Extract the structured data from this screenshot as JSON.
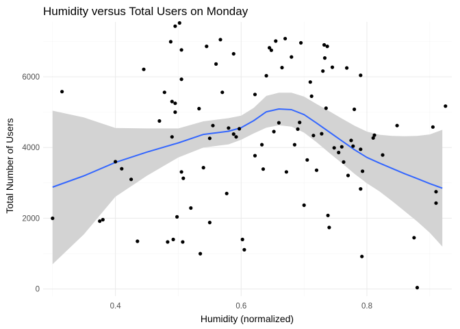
{
  "chart_data": {
    "type": "scatter",
    "title": "Humidity versus Total Users on Monday",
    "xlabel": "Humidity (normalized)",
    "ylabel": "Total Number of Users",
    "xlim": [
      0.285,
      0.935
    ],
    "ylim": [
      -200,
      7550
    ],
    "x_ticks": [
      0.4,
      0.6,
      0.8
    ],
    "x_tick_labels": [
      "0.4",
      "0.6",
      "0.8"
    ],
    "x_minor_ticks": [
      0.3,
      0.5,
      0.7,
      0.9
    ],
    "y_ticks": [
      0,
      2000,
      4000,
      6000
    ],
    "y_tick_labels": [
      "0",
      "2000",
      "4000",
      "6000"
    ],
    "y_minor_ticks": [
      1000,
      3000,
      5000,
      7000
    ],
    "grid": true,
    "colors": {
      "points": "#000000",
      "smooth_line": "#3366ff",
      "ribbon": "#d3d3d3",
      "grid": "#ebebeb"
    },
    "points": [
      {
        "x": 0.3,
        "y": 2000
      },
      {
        "x": 0.315,
        "y": 5580
      },
      {
        "x": 0.375,
        "y": 1920
      },
      {
        "x": 0.38,
        "y": 1960
      },
      {
        "x": 0.4,
        "y": 3600
      },
      {
        "x": 0.41,
        "y": 3400
      },
      {
        "x": 0.425,
        "y": 3100
      },
      {
        "x": 0.435,
        "y": 1350
      },
      {
        "x": 0.445,
        "y": 6210
      },
      {
        "x": 0.47,
        "y": 4750
      },
      {
        "x": 0.478,
        "y": 5560
      },
      {
        "x": 0.483,
        "y": 1330
      },
      {
        "x": 0.488,
        "y": 6990
      },
      {
        "x": 0.49,
        "y": 5300
      },
      {
        "x": 0.49,
        "y": 4300
      },
      {
        "x": 0.492,
        "y": 1400
      },
      {
        "x": 0.495,
        "y": 7430
      },
      {
        "x": 0.495,
        "y": 5250
      },
      {
        "x": 0.495,
        "y": 5000
      },
      {
        "x": 0.498,
        "y": 2040
      },
      {
        "x": 0.502,
        "y": 7520
      },
      {
        "x": 0.505,
        "y": 6760
      },
      {
        "x": 0.505,
        "y": 5930
      },
      {
        "x": 0.505,
        "y": 3310
      },
      {
        "x": 0.507,
        "y": 1330
      },
      {
        "x": 0.508,
        "y": 3130
      },
      {
        "x": 0.52,
        "y": 2290
      },
      {
        "x": 0.533,
        "y": 5100
      },
      {
        "x": 0.535,
        "y": 1000
      },
      {
        "x": 0.54,
        "y": 3430
      },
      {
        "x": 0.545,
        "y": 6860
      },
      {
        "x": 0.55,
        "y": 4260
      },
      {
        "x": 0.55,
        "y": 1880
      },
      {
        "x": 0.555,
        "y": 4620
      },
      {
        "x": 0.56,
        "y": 6360
      },
      {
        "x": 0.567,
        "y": 7050
      },
      {
        "x": 0.57,
        "y": 5560
      },
      {
        "x": 0.577,
        "y": 2700
      },
      {
        "x": 0.58,
        "y": 4550
      },
      {
        "x": 0.588,
        "y": 6650
      },
      {
        "x": 0.588,
        "y": 4380
      },
      {
        "x": 0.592,
        "y": 4300
      },
      {
        "x": 0.597,
        "y": 4530
      },
      {
        "x": 0.602,
        "y": 1400
      },
      {
        "x": 0.605,
        "y": 1110
      },
      {
        "x": 0.622,
        "y": 5500
      },
      {
        "x": 0.622,
        "y": 3770
      },
      {
        "x": 0.633,
        "y": 4080
      },
      {
        "x": 0.635,
        "y": 3390
      },
      {
        "x": 0.64,
        "y": 6030
      },
      {
        "x": 0.645,
        "y": 6820
      },
      {
        "x": 0.648,
        "y": 6750
      },
      {
        "x": 0.652,
        "y": 4450
      },
      {
        "x": 0.655,
        "y": 7010
      },
      {
        "x": 0.66,
        "y": 4700
      },
      {
        "x": 0.665,
        "y": 6260
      },
      {
        "x": 0.67,
        "y": 7080
      },
      {
        "x": 0.672,
        "y": 3310
      },
      {
        "x": 0.68,
        "y": 6560
      },
      {
        "x": 0.685,
        "y": 4080
      },
      {
        "x": 0.69,
        "y": 4520
      },
      {
        "x": 0.693,
        "y": 4710
      },
      {
        "x": 0.695,
        "y": 6960
      },
      {
        "x": 0.7,
        "y": 2370
      },
      {
        "x": 0.705,
        "y": 3650
      },
      {
        "x": 0.71,
        "y": 5850
      },
      {
        "x": 0.712,
        "y": 5450
      },
      {
        "x": 0.715,
        "y": 4340
      },
      {
        "x": 0.72,
        "y": 3360
      },
      {
        "x": 0.728,
        "y": 4390
      },
      {
        "x": 0.73,
        "y": 6160
      },
      {
        "x": 0.732,
        "y": 6900
      },
      {
        "x": 0.733,
        "y": 6530
      },
      {
        "x": 0.735,
        "y": 5110
      },
      {
        "x": 0.737,
        "y": 6860
      },
      {
        "x": 0.738,
        "y": 2080
      },
      {
        "x": 0.74,
        "y": 1740
      },
      {
        "x": 0.745,
        "y": 6270
      },
      {
        "x": 0.748,
        "y": 3990
      },
      {
        "x": 0.755,
        "y": 3860
      },
      {
        "x": 0.76,
        "y": 4020
      },
      {
        "x": 0.763,
        "y": 3590
      },
      {
        "x": 0.768,
        "y": 6250
      },
      {
        "x": 0.77,
        "y": 3210
      },
      {
        "x": 0.775,
        "y": 4200
      },
      {
        "x": 0.778,
        "y": 4040
      },
      {
        "x": 0.78,
        "y": 5080
      },
      {
        "x": 0.79,
        "y": 6040
      },
      {
        "x": 0.79,
        "y": 3950
      },
      {
        "x": 0.79,
        "y": 2830
      },
      {
        "x": 0.792,
        "y": 920
      },
      {
        "x": 0.793,
        "y": 3330
      },
      {
        "x": 0.81,
        "y": 4270
      },
      {
        "x": 0.812,
        "y": 4350
      },
      {
        "x": 0.825,
        "y": 3790
      },
      {
        "x": 0.848,
        "y": 4620
      },
      {
        "x": 0.875,
        "y": 1450
      },
      {
        "x": 0.88,
        "y": 40
      },
      {
        "x": 0.905,
        "y": 4580
      },
      {
        "x": 0.91,
        "y": 2750
      },
      {
        "x": 0.91,
        "y": 2430
      },
      {
        "x": 0.925,
        "y": 5170
      }
    ],
    "smooth": {
      "x": [
        0.3,
        0.35,
        0.4,
        0.45,
        0.5,
        0.54,
        0.58,
        0.6,
        0.62,
        0.64,
        0.66,
        0.68,
        0.7,
        0.72,
        0.74,
        0.76,
        0.78,
        0.8,
        0.82,
        0.84,
        0.86,
        0.88,
        0.9,
        0.92
      ],
      "y": [
        2880,
        3200,
        3580,
        3870,
        4130,
        4370,
        4460,
        4560,
        4760,
        5010,
        5090,
        5070,
        4930,
        4690,
        4440,
        4190,
        3940,
        3720,
        3560,
        3410,
        3260,
        3120,
        2980,
        2850
      ],
      "lower": [
        700,
        1550,
        2610,
        3200,
        3720,
        4000,
        4090,
        4220,
        4400,
        4560,
        4630,
        4590,
        4420,
        4150,
        3850,
        3560,
        3260,
        2990,
        2760,
        2490,
        2200,
        1910,
        1590,
        1200
      ],
      "upper": [
        5040,
        4850,
        4550,
        4540,
        4540,
        4740,
        4830,
        4900,
        5120,
        5460,
        5550,
        5550,
        5440,
        5230,
        5030,
        4820,
        4620,
        4450,
        4360,
        4330,
        4320,
        4330,
        4370,
        4500
      ]
    }
  }
}
